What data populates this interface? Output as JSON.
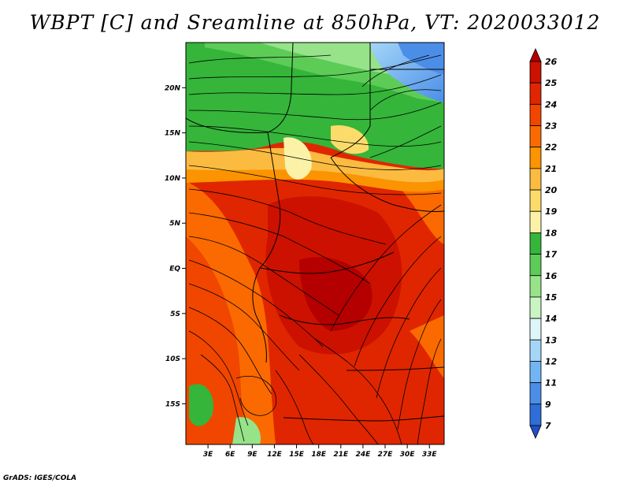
{
  "title": "WBPT [C] and Sreamline at 850hPa, VT: 2020033012",
  "credit": "GrADS: IGES/COLA",
  "map": {
    "lat_labels": [
      "20N",
      "15N",
      "10N",
      "5N",
      "EQ",
      "5S",
      "10S",
      "15S"
    ],
    "lat_values": [
      20,
      15,
      10,
      5,
      0,
      -5,
      -10,
      -15
    ],
    "lon_labels": [
      "3E",
      "6E",
      "9E",
      "12E",
      "15E",
      "18E",
      "21E",
      "24E",
      "27E",
      "30E",
      "33E"
    ],
    "lon_values": [
      3,
      6,
      9,
      12,
      15,
      18,
      21,
      24,
      27,
      30,
      33
    ],
    "lat_range": [
      -19.5,
      25
    ],
    "lon_range": [
      0,
      35
    ]
  },
  "colorbar": {
    "labels": [
      "26",
      "25",
      "24",
      "23",
      "22",
      "21",
      "20",
      "19",
      "18",
      "17",
      "16",
      "15",
      "14",
      "13",
      "12",
      "11",
      "9",
      "7"
    ],
    "colors": [
      "#b40000",
      "#cc1100",
      "#e02600",
      "#f04600",
      "#fa6a00",
      "#fb9400",
      "#fbbb40",
      "#fbdc6a",
      "#fbf2a8",
      "#35b53a",
      "#5ccc57",
      "#96e38a",
      "#c8f5c2",
      "#dff6f8",
      "#a4d6f8",
      "#72b5f3",
      "#4b8ee8",
      "#2f6ed8",
      "#1e50c8"
    ]
  }
}
